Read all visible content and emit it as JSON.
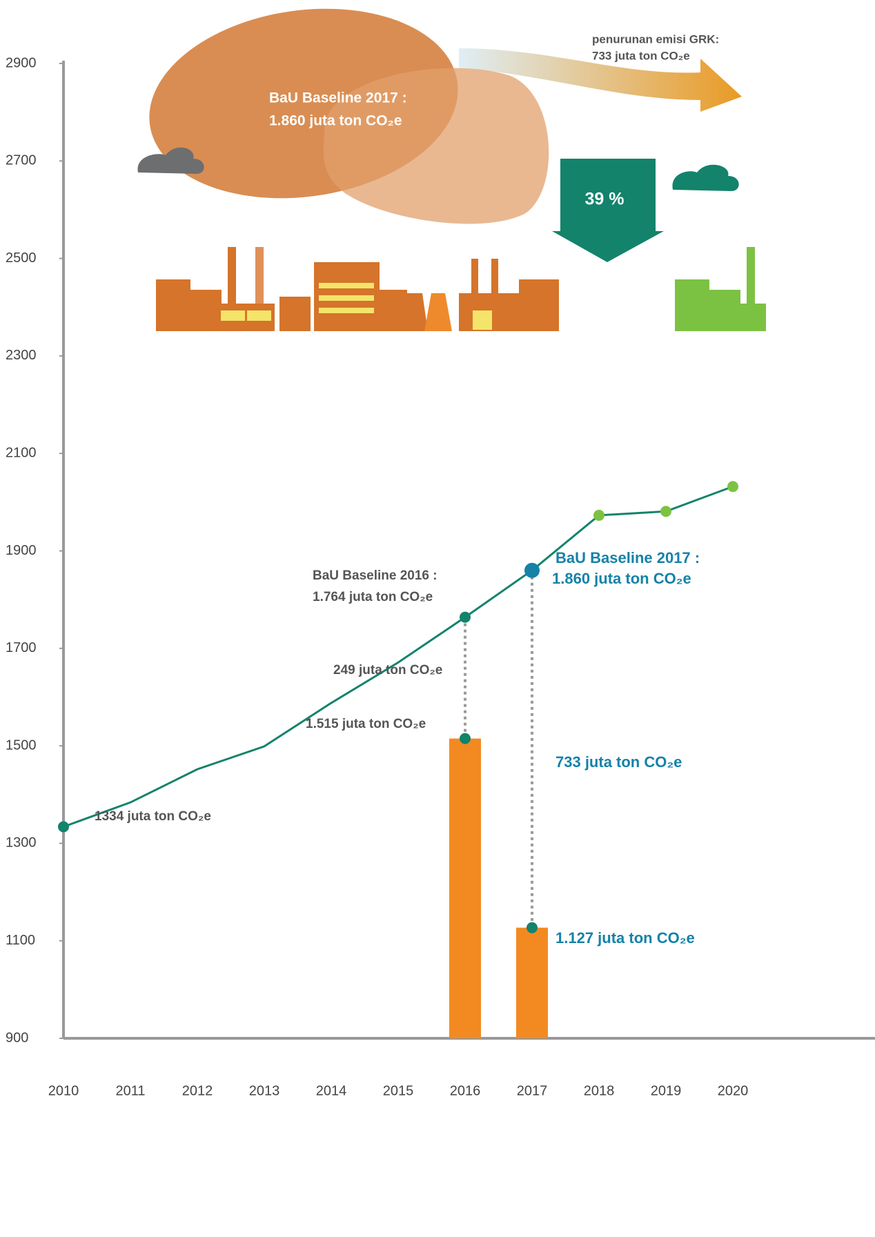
{
  "chart_data": {
    "type": "line",
    "categories": [
      "2010",
      "2011",
      "2012",
      "2013",
      "2014",
      "2015",
      "2016",
      "2017",
      "2018",
      "2019",
      "2020"
    ],
    "series": [
      {
        "color": "#13836b",
        "values": [
          1334,
          1384,
          1452,
          1499,
          1588,
          1671,
          1764,
          1860,
          1973,
          1981,
          2032
        ],
        "marker_colors": [
          "#13836b",
          null,
          null,
          null,
          null,
          null,
          "#13836b",
          "#1582a8",
          "#7cc242",
          "#7cc242",
          "#7cc242"
        ]
      }
    ],
    "bars": {
      "color": "#f28a21",
      "values": [
        null,
        null,
        null,
        null,
        null,
        null,
        1515,
        1127,
        null,
        null,
        null
      ]
    },
    "ylim": [
      900,
      2900
    ],
    "yticks": [
      900,
      1100,
      1300,
      1500,
      1700,
      1900,
      2100,
      2300,
      2500,
      2700,
      2900
    ],
    "grid": false,
    "annotations": [
      "penurunan emisi GRK:",
      "733 juta ton CO₂e",
      "BaU Baseline  2017 :",
      "1.860 juta ton CO₂e",
      "39 %",
      "BaU Baseline 2016 :",
      "1.764 juta ton CO₂e",
      "BaU Baseline 2017 :",
      "1.860  juta ton CO₂e",
      "249 juta ton CO₂e",
      "1.515 juta ton CO₂e",
      "733 juta ton CO₂e",
      "1334 juta ton CO₂e",
      "1.127 juta ton CO₂e"
    ]
  }
}
